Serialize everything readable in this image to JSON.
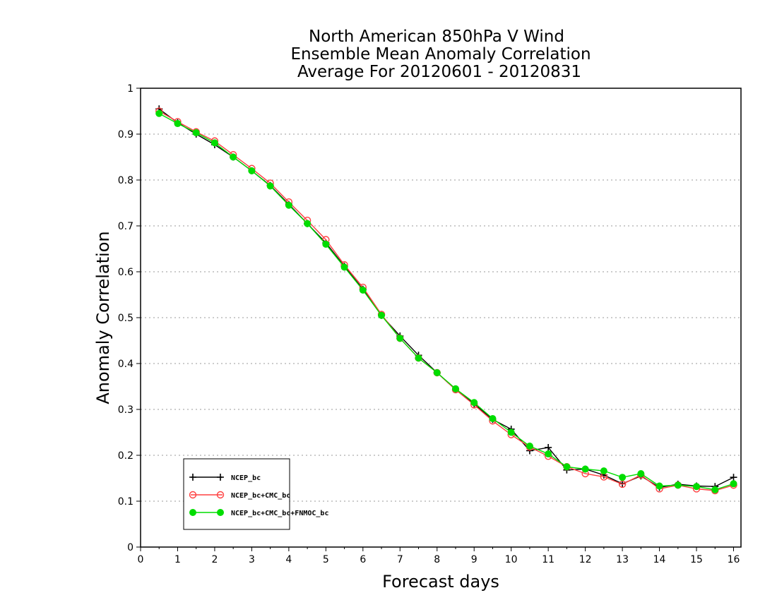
{
  "chart_data": {
    "type": "line",
    "title_lines": [
      "North American 850hPa V Wind",
      "Ensemble Mean Anomaly Correlation",
      "Average For 20120601 - 20120831"
    ],
    "xlabel": "Forecast days",
    "ylabel": "Anomaly Correlation",
    "xlim": [
      0,
      16.2
    ],
    "ylim": [
      0,
      1
    ],
    "xticks": [
      "0",
      "1",
      "2",
      "3",
      "4",
      "5",
      "6",
      "7",
      "8",
      "9",
      "10",
      "11",
      "12",
      "13",
      "14",
      "15",
      "16"
    ],
    "yticks": [
      "0",
      "0.1",
      "0.2",
      "0.3",
      "0.4",
      "0.5",
      "0.6",
      "0.7",
      "0.8",
      "0.9",
      "1"
    ],
    "grid": true,
    "grid_style": "dotted horizontal",
    "legend_placement": "bottom-left",
    "x": [
      0.5,
      1,
      1.5,
      2,
      2.5,
      3,
      3.5,
      4,
      4.5,
      5,
      5.5,
      6,
      6.5,
      7,
      7.5,
      8,
      8.5,
      9,
      9.5,
      10,
      10.5,
      11,
      11.5,
      12,
      12.5,
      13,
      13.5,
      14,
      14.5,
      15,
      15.5,
      16
    ],
    "series": [
      {
        "name": "NCEP_bc",
        "color": "#000000",
        "marker": "plus",
        "values": [
          0.955,
          0.925,
          0.9,
          0.877,
          0.85,
          0.82,
          0.788,
          0.747,
          0.705,
          0.663,
          0.612,
          0.562,
          0.505,
          0.46,
          0.418,
          0.38,
          0.343,
          0.312,
          0.278,
          0.257,
          0.21,
          0.217,
          0.168,
          0.17,
          0.157,
          0.138,
          0.155,
          0.13,
          0.137,
          0.133,
          0.132,
          0.152
        ]
      },
      {
        "name": "NCEP_bc+CMC_bc",
        "color": "#ff4040",
        "marker": "open-circle",
        "values": [
          0.95,
          0.927,
          0.905,
          0.885,
          0.855,
          0.825,
          0.793,
          0.752,
          0.712,
          0.67,
          0.615,
          0.566,
          0.507,
          0.455,
          0.412,
          0.38,
          0.343,
          0.31,
          0.275,
          0.245,
          0.218,
          0.198,
          0.175,
          0.16,
          0.153,
          0.137,
          0.157,
          0.127,
          0.135,
          0.127,
          0.123,
          0.135
        ]
      },
      {
        "name": "NCEP_bc+CMC_bc+FNMOC_bc",
        "color": "#00dd00",
        "marker": "filled-circle",
        "values": [
          0.945,
          0.923,
          0.903,
          0.881,
          0.85,
          0.82,
          0.787,
          0.745,
          0.705,
          0.66,
          0.61,
          0.56,
          0.505,
          0.455,
          0.412,
          0.38,
          0.345,
          0.315,
          0.28,
          0.25,
          0.22,
          0.203,
          0.175,
          0.17,
          0.166,
          0.152,
          0.16,
          0.133,
          0.135,
          0.132,
          0.125,
          0.138
        ]
      }
    ]
  }
}
